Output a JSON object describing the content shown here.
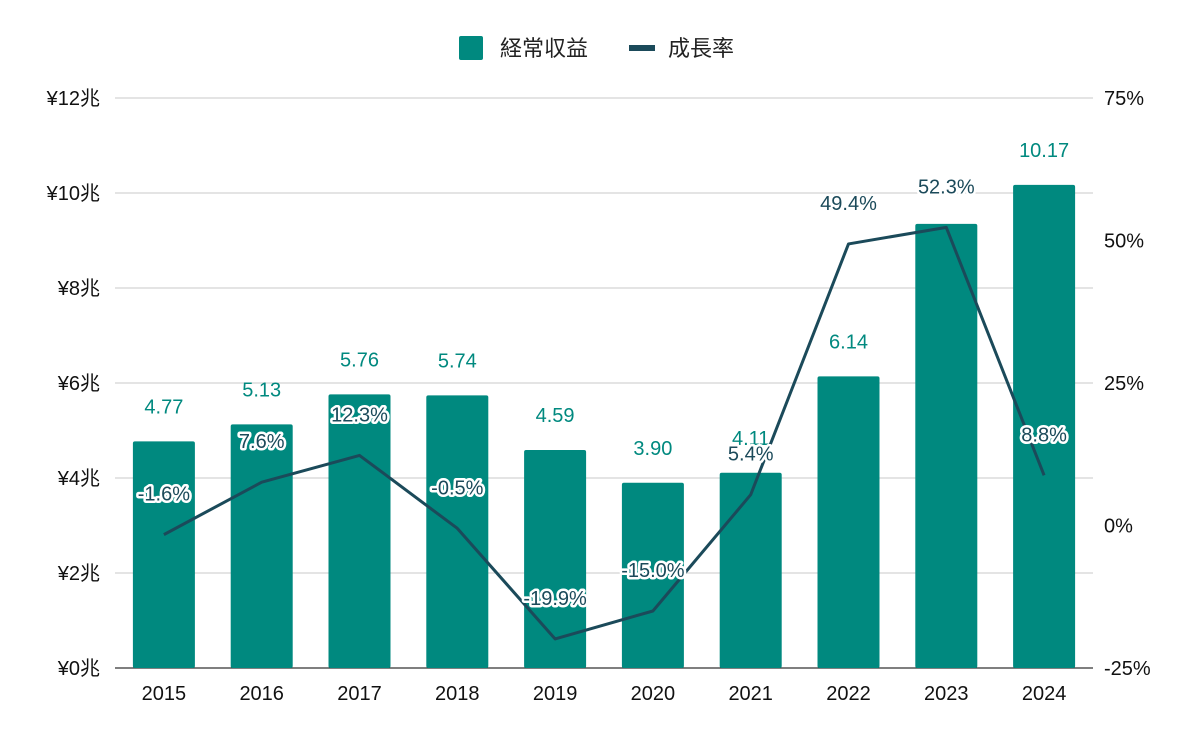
{
  "chart_data": {
    "type": "bar",
    "categories": [
      "2015",
      "2016",
      "2017",
      "2018",
      "2019",
      "2020",
      "2021",
      "2022",
      "2023",
      "2024"
    ],
    "series": [
      {
        "name": "経常収益",
        "type": "bar",
        "axis": "left",
        "values": [
          4.77,
          5.13,
          5.76,
          5.74,
          4.59,
          3.9,
          4.11,
          6.14,
          9.35,
          10.17
        ],
        "labels": [
          "4.77",
          "5.13",
          "5.76",
          "5.74",
          "4.59",
          "3.90",
          "4.11",
          "6.14",
          "",
          "10.17"
        ],
        "color": "#00897F"
      },
      {
        "name": "成長率",
        "type": "line",
        "axis": "right",
        "values": [
          -1.6,
          7.6,
          12.3,
          -0.5,
          -19.9,
          -15.0,
          5.4,
          49.4,
          52.3,
          8.8
        ],
        "labels": [
          "-1.6%",
          "7.6%",
          "12.3%",
          "-0.5%",
          "-19.9%",
          "-15.0%",
          "5.4%",
          "49.4%",
          "52.3%",
          "8.8%"
        ],
        "color": "#1B4A5A"
      }
    ],
    "left_axis": {
      "ylim": [
        0,
        12
      ],
      "ticks": [
        0,
        2,
        4,
        6,
        8,
        10,
        12
      ],
      "tick_labels": [
        "¥0兆",
        "¥2兆",
        "¥4兆",
        "¥6兆",
        "¥8兆",
        "¥10兆",
        "¥12兆"
      ]
    },
    "right_axis": {
      "ylim": [
        -25,
        75
      ],
      "ticks": [
        -25,
        0,
        25,
        50,
        75
      ],
      "tick_labels": [
        "-25%",
        "0%",
        "25%",
        "50%",
        "75%"
      ]
    },
    "grid": true,
    "legend_position": "top-center"
  }
}
